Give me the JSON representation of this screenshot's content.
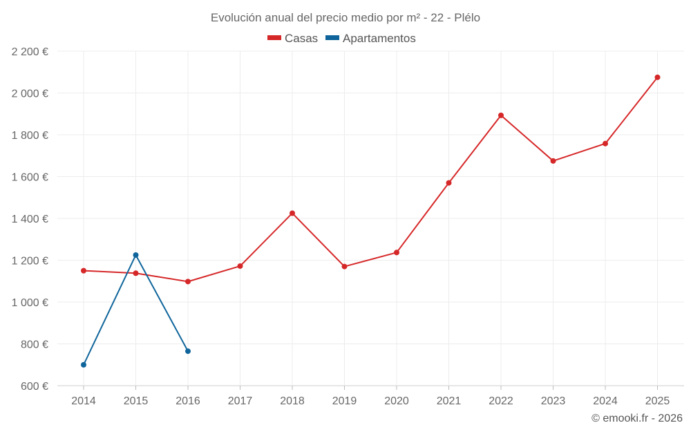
{
  "chart_data": {
    "type": "line",
    "title": "Evolución anual del precio medio por m² - 22 - Plélo",
    "categories": [
      "2014",
      "2015",
      "2016",
      "2017",
      "2018",
      "2019",
      "2020",
      "2021",
      "2022",
      "2023",
      "2024",
      "2025"
    ],
    "series": [
      {
        "name": "Casas",
        "color": "#d62728",
        "values": [
          1150,
          1138,
          1098,
          1172,
          1425,
          1170,
          1237,
          1570,
          1893,
          1675,
          1758,
          2075
        ]
      },
      {
        "name": "Apartamentos",
        "color": "#0f659b",
        "values": [
          700,
          1225,
          765,
          null,
          null,
          null,
          null,
          null,
          null,
          null,
          null,
          null
        ]
      }
    ],
    "ylim": [
      600,
      2200
    ],
    "yticks": [
      600,
      800,
      1000,
      1200,
      1400,
      1600,
      1800,
      2000,
      2200
    ],
    "ytick_labels": [
      "600 €",
      "800 €",
      "1 000 €",
      "1 200 €",
      "1 400 €",
      "1 600 €",
      "1 800 €",
      "2 000 €",
      "2 200 €"
    ],
    "xlabel": "",
    "ylabel": "",
    "grid": true,
    "legend": "top-center"
  },
  "credit": "© emooki.fr - 2026"
}
